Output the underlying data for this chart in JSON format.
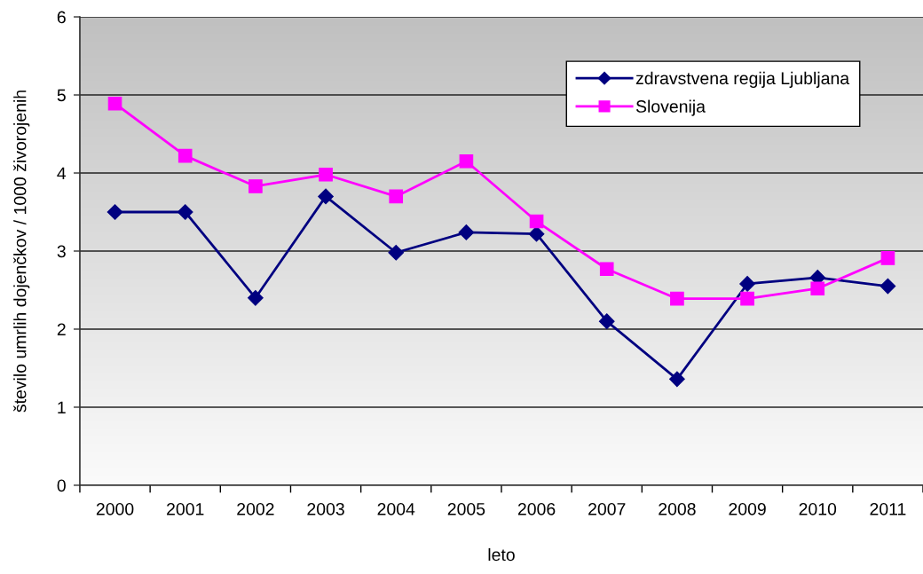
{
  "chart_data": {
    "type": "line",
    "xlabel": "leto",
    "ylabel": "število umrlih dojenčkov / 1000 živorojenih",
    "categories": [
      "2000",
      "2001",
      "2002",
      "2003",
      "2004",
      "2005",
      "2006",
      "2007",
      "2008",
      "2009",
      "2010",
      "2011"
    ],
    "series": [
      {
        "name": "zdravstvena regija Ljubljana",
        "color": "#000080",
        "marker": "diamond",
        "values": [
          3.5,
          3.5,
          2.4,
          3.7,
          2.98,
          3.24,
          3.22,
          2.1,
          1.36,
          2.58,
          2.66,
          2.55
        ]
      },
      {
        "name": "Slovenija",
        "color": "#ff00ff",
        "marker": "square",
        "values": [
          4.89,
          4.22,
          3.83,
          3.98,
          3.7,
          4.15,
          3.38,
          2.77,
          2.39,
          2.39,
          2.52,
          2.91
        ]
      }
    ],
    "ylim": [
      0,
      6
    ],
    "yticks": [
      0,
      1,
      2,
      3,
      4,
      5,
      6
    ],
    "grid": "y",
    "legend": "top right",
    "line_style": "solid"
  }
}
